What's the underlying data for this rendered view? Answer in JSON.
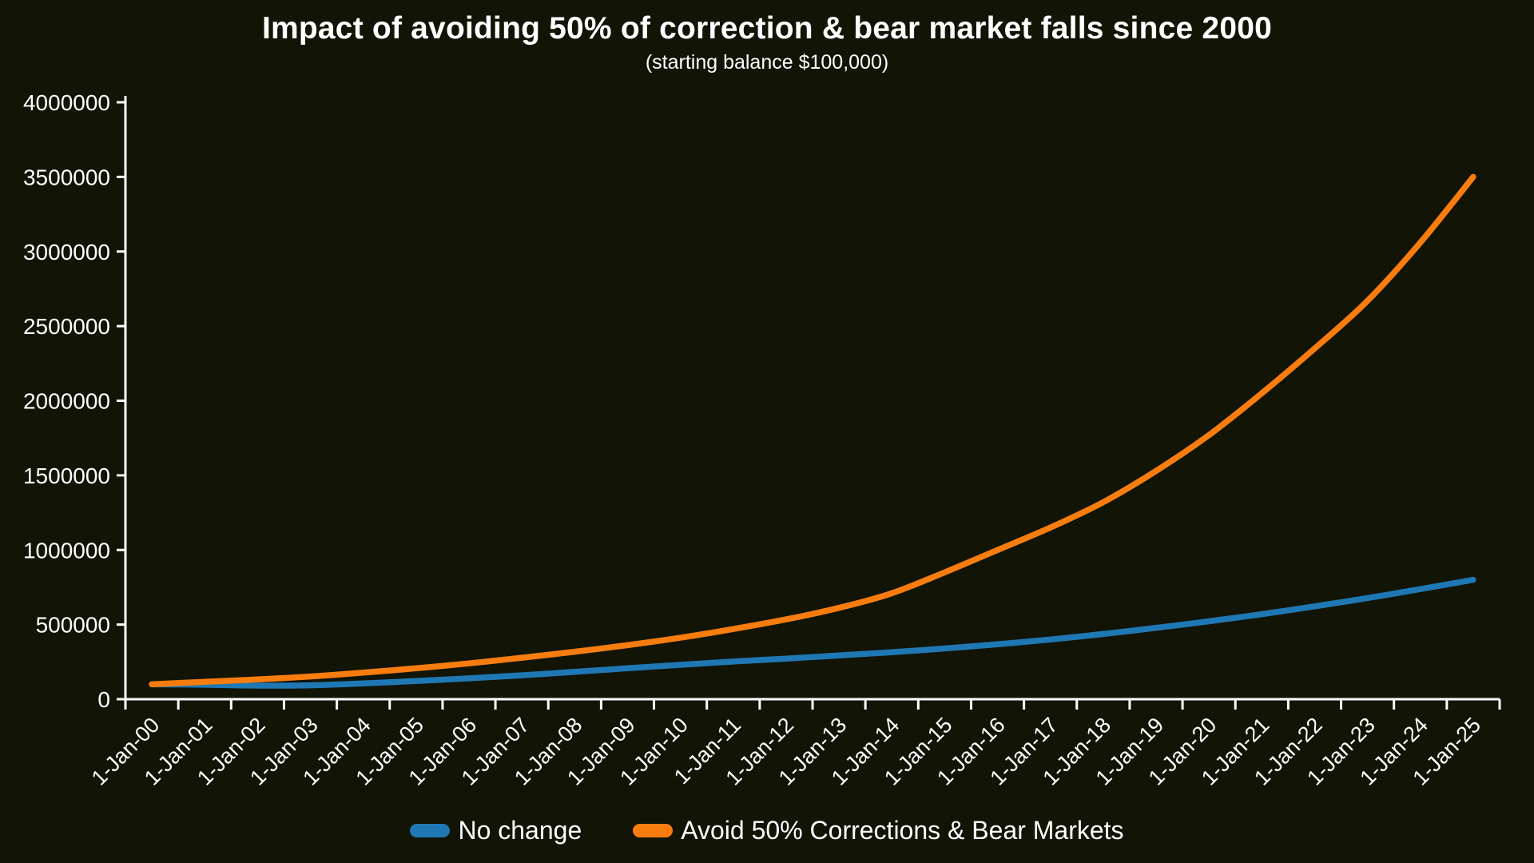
{
  "title": "Impact of avoiding 50% of correction & bear market falls since 2000",
  "subtitle": "(starting balance $100,000)",
  "chart_data": {
    "type": "line",
    "title": "Impact of avoiding 50% of correction & bear market falls since 2000",
    "subtitle": "(starting balance $100,000)",
    "categories": [
      "1-Jan-00",
      "1-Jan-01",
      "1-Jan-02",
      "1-Jan-03",
      "1-Jan-04",
      "1-Jan-05",
      "1-Jan-06",
      "1-Jan-07",
      "1-Jan-08",
      "1-Jan-09",
      "1-Jan-10",
      "1-Jan-11",
      "1-Jan-12",
      "1-Jan-13",
      "1-Jan-14",
      "1-Jan-15",
      "1-Jan-16",
      "1-Jan-17",
      "1-Jan-18",
      "1-Jan-19",
      "1-Jan-20",
      "1-Jan-21",
      "1-Jan-22",
      "1-Jan-23",
      "1-Jan-24",
      "1-Jan-25"
    ],
    "series": [
      {
        "name": "No change",
        "color": "#1f78b4",
        "values": [
          100000,
          97000,
          91000,
          93000,
          106000,
          122000,
          140000,
          160000,
          183000,
          207000,
          230000,
          252000,
          272000,
          293000,
          315000,
          340000,
          368000,
          400000,
          437000,
          478000,
          522000,
          570000,
          622000,
          678000,
          738000,
          800000
        ]
      },
      {
        "name": "Avoid 50% Corrections & Bear Markets",
        "color": "#f87d0e",
        "values": [
          100000,
          116000,
          132000,
          152000,
          178000,
          207000,
          240000,
          278000,
          318000,
          362000,
          412000,
          470000,
          535000,
          612000,
          710000,
          850000,
          1000000,
          1150000,
          1320000,
          1530000,
          1770000,
          2050000,
          2350000,
          2670000,
          3060000,
          3500000
        ]
      }
    ],
    "xlabel": "",
    "ylabel": "",
    "ylim": [
      0,
      4000000
    ],
    "ytick_step": 500000,
    "ytick_labels": [
      "0",
      "500000",
      "1000000",
      "1500000",
      "2000000",
      "2500000",
      "3000000",
      "3500000",
      "4000000"
    ],
    "x_label_rotation": -45,
    "grid": false,
    "legend_position": "bottom",
    "axis_color": "#ffffff",
    "text_color": "#ffffff",
    "background_color": "#121406",
    "line_width": 7.5
  }
}
